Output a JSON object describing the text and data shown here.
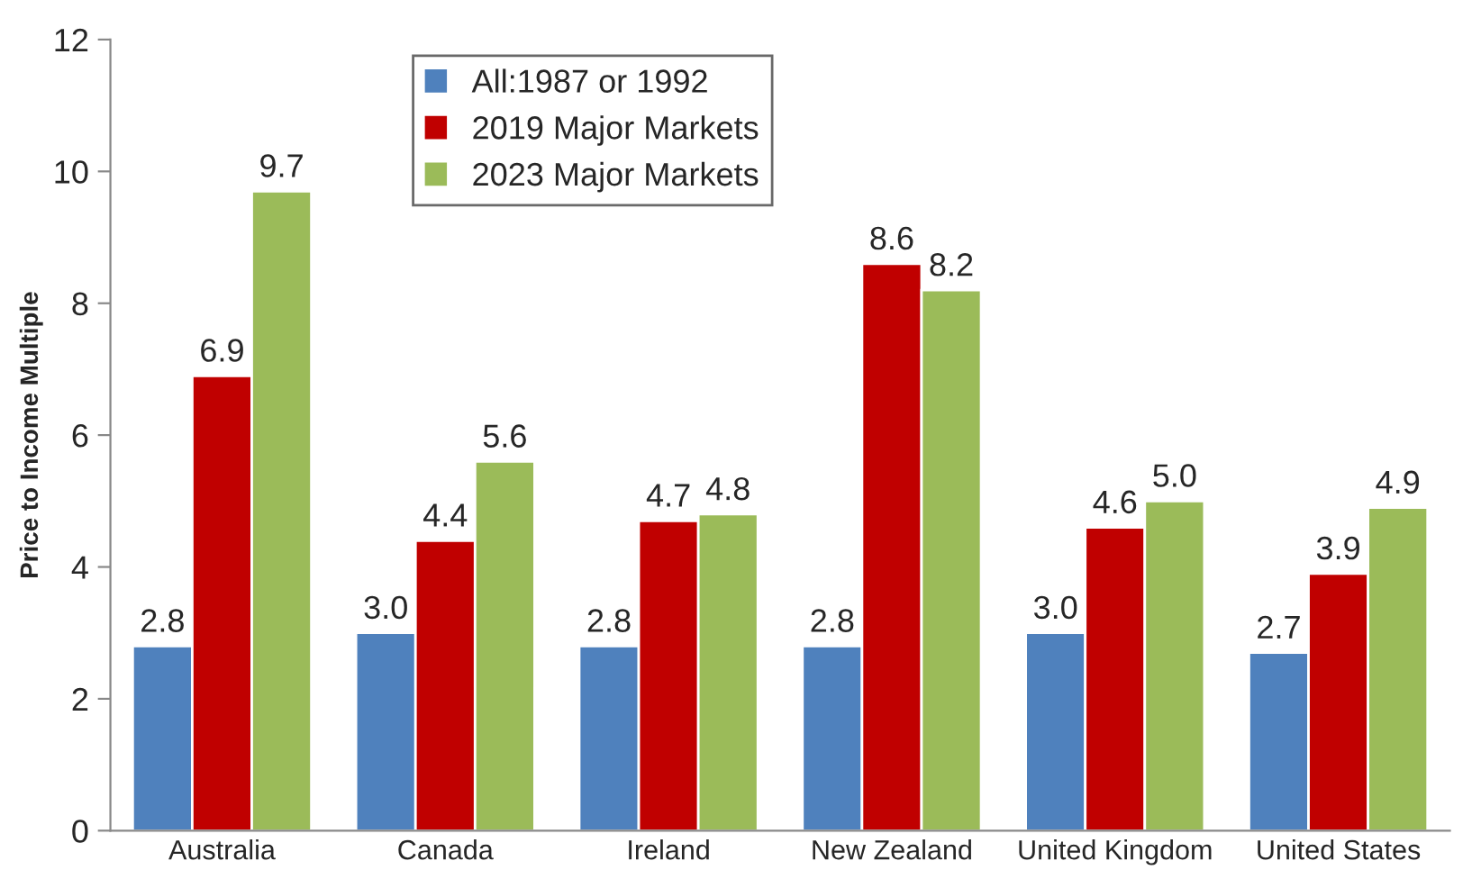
{
  "chart_data": {
    "type": "bar",
    "ylabel": "Price to Income Multiple",
    "categories": [
      "Australia",
      "Canada",
      "Ireland",
      "New Zealand",
      "United Kingdom",
      "United States"
    ],
    "series": [
      {
        "name": "All:1987 or 1992",
        "color": "#4f81bd",
        "values": [
          2.8,
          3.0,
          2.8,
          2.8,
          3.0,
          2.7
        ],
        "value_labels": [
          "2.8",
          "3.0",
          "2.8",
          "2.8",
          "3.0",
          "2.7"
        ]
      },
      {
        "name": "2019 Major Markets",
        "color": "#c00000",
        "values": [
          6.9,
          4.4,
          4.7,
          8.6,
          4.6,
          3.9
        ],
        "value_labels": [
          "6.9",
          "4.4",
          "4.7",
          "8.6",
          "4.6",
          "3.9"
        ]
      },
      {
        "name": "2023 Major Markets",
        "color": "#9bbb59",
        "values": [
          9.7,
          5.6,
          4.8,
          8.2,
          5.0,
          4.9
        ],
        "value_labels": [
          "9.7",
          "5.6",
          "4.8",
          "8.2",
          "5.0",
          "4.9"
        ]
      }
    ],
    "ylim": [
      0,
      12
    ],
    "yticks": [
      0,
      2,
      4,
      6,
      8,
      10,
      12
    ],
    "legend": "top"
  }
}
